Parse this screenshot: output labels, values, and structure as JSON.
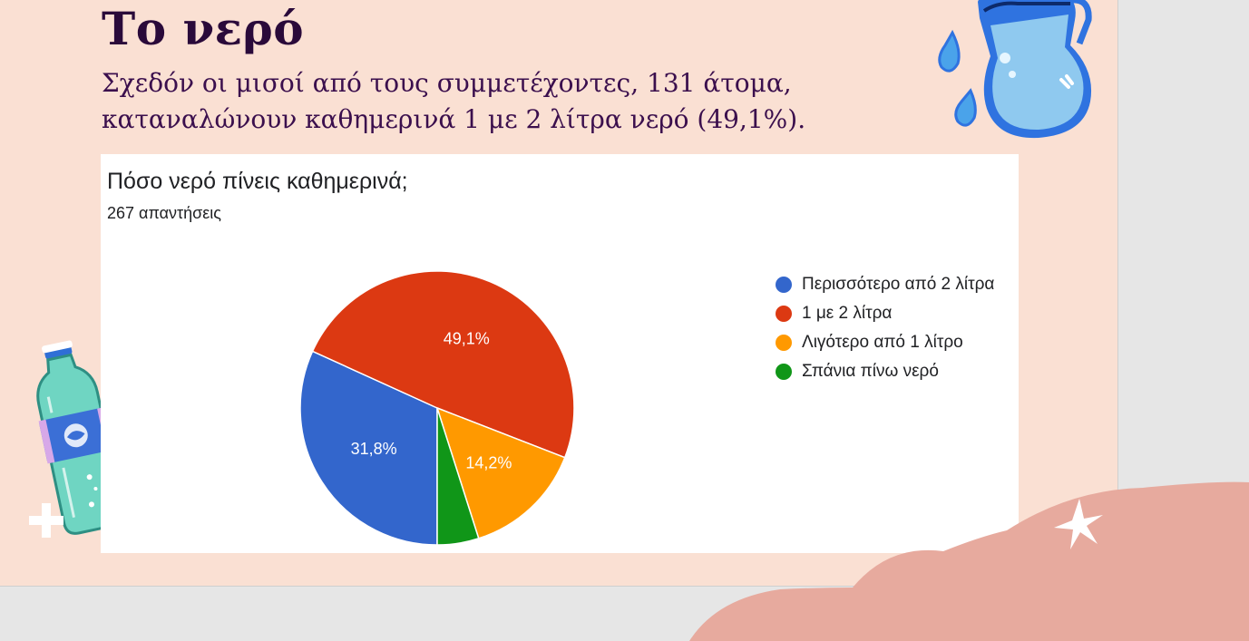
{
  "slide": {
    "title": "Το νερό",
    "subtitle_line1": "Σχεδόν οι μισοί από τους συμμετέχοντες, 131 άτομα,",
    "subtitle_line2": "καταναλώνουν καθημερινά 1 με 2 λίτρα νερό (49,1%).",
    "colors": {
      "background": "#fae0d3",
      "cloud": "#e7aa9e",
      "title": "#2a0a3a"
    }
  },
  "form_card": {
    "question": "Πόσο νερό πίνεις καθημερινά;",
    "response_count": "267 απαντήσεις"
  },
  "chart_data": {
    "type": "pie",
    "title": "Πόσο νερό πίνεις καθημερινά;",
    "slices": [
      {
        "label": "Περισσότερο από 2 λίτρα",
        "value": 31.8,
        "display": "31,8%",
        "color": "#3366cc"
      },
      {
        "label": "1 με 2 λίτρα",
        "value": 49.1,
        "display": "49,1%",
        "color": "#dc3912"
      },
      {
        "label": "Λιγότερο από 1 λίτρο",
        "value": 14.2,
        "display": "14,2%",
        "color": "#ff9900"
      },
      {
        "label": "Σπάνια πίνω νερό",
        "value": 4.9,
        "display": "",
        "color": "#109618"
      }
    ],
    "legend_position": "right"
  },
  "decorations": [
    "water-jug-icon",
    "water-bottle-icon",
    "sparkle-icon",
    "plus-icon"
  ]
}
